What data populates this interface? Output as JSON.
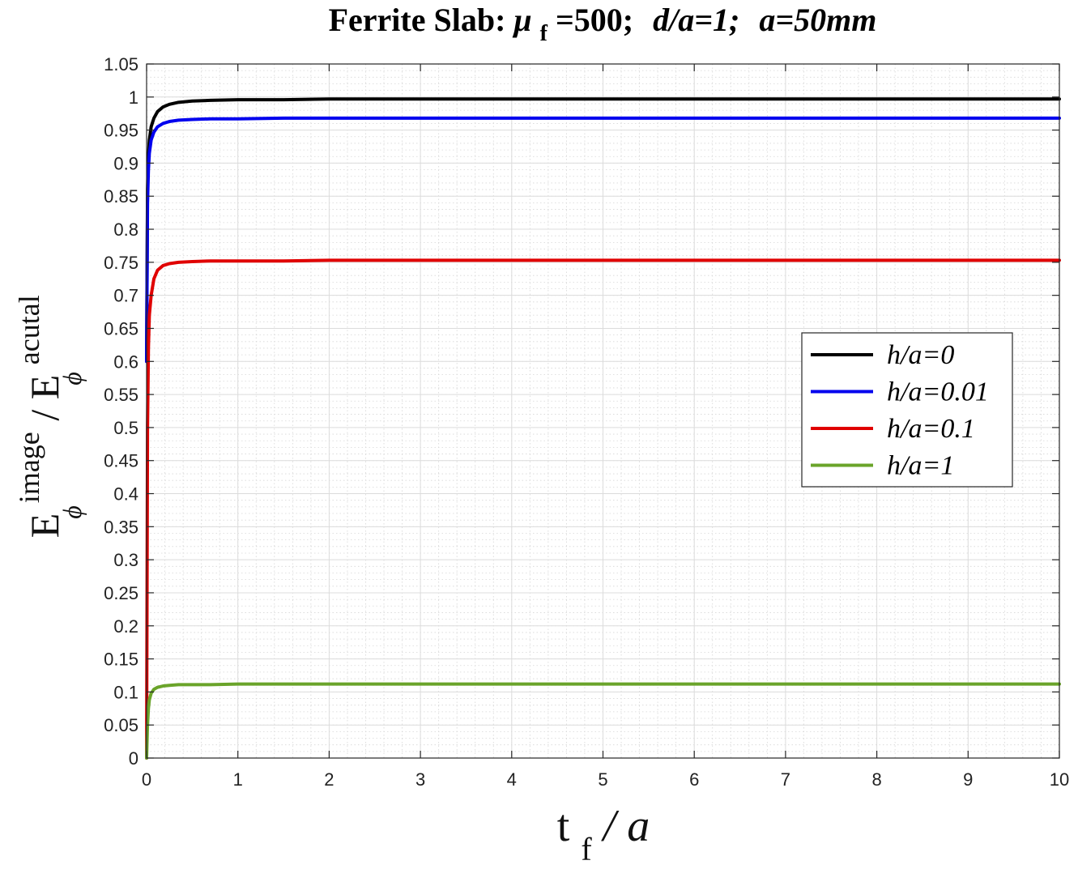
{
  "chart_data": {
    "type": "line",
    "title": {
      "prefix": "Ferrite Slab: ",
      "mu": "μ",
      "mu_sub": "f",
      "mu_value": "=500;",
      "param2": "d/a=1;",
      "param3": "a=50mm"
    },
    "xlabel": {
      "base": "t",
      "sub": "f",
      "rest": "/ a"
    },
    "ylabel": {
      "num_base": "E",
      "num_sup": "image",
      "num_sub": "ϕ",
      "slash": "/",
      "den_base": "E",
      "den_sup": "acutal",
      "den_sub": "ϕ"
    },
    "xlim": [
      0,
      10
    ],
    "ylim": [
      0,
      1.05
    ],
    "x_ticks": [
      0,
      1,
      2,
      3,
      4,
      5,
      6,
      7,
      8,
      9,
      10
    ],
    "x_tick_labels": [
      "0",
      "1",
      "2",
      "3",
      "4",
      "5",
      "6",
      "7",
      "8",
      "9",
      "10"
    ],
    "y_ticks": [
      0,
      0.05,
      0.1,
      0.15,
      0.2,
      0.25,
      0.3,
      0.35,
      0.4,
      0.45,
      0.5,
      0.55,
      0.6,
      0.65,
      0.7,
      0.75,
      0.8,
      0.85,
      0.9,
      0.95,
      1,
      1.05
    ],
    "y_tick_labels": [
      "0",
      "0.05",
      "0.1",
      "0.15",
      "0.2",
      "0.25",
      "0.3",
      "0.35",
      "0.4",
      "0.45",
      "0.5",
      "0.55",
      "0.6",
      "0.65",
      "0.7",
      "0.75",
      "0.8",
      "0.85",
      "0.9",
      "0.95",
      "1",
      "1.05"
    ],
    "grid": true,
    "minor_grid": true,
    "legend_position": "center-right",
    "series": [
      {
        "name": "h/a=0",
        "color": "#000000",
        "x": [
          0,
          0.01,
          0.02,
          0.03,
          0.05,
          0.08,
          0.12,
          0.18,
          0.25,
          0.35,
          0.5,
          0.7,
          1,
          1.5,
          2,
          3,
          5,
          7,
          10
        ],
        "y": [
          0.6,
          0.86,
          0.91,
          0.935,
          0.955,
          0.968,
          0.978,
          0.985,
          0.989,
          0.992,
          0.994,
          0.995,
          0.996,
          0.996,
          0.997,
          0.997,
          0.997,
          0.997,
          0.997
        ]
      },
      {
        "name": "h/a=0.01",
        "color": "#0000ee",
        "x": [
          0,
          0.01,
          0.02,
          0.03,
          0.05,
          0.08,
          0.12,
          0.18,
          0.25,
          0.35,
          0.5,
          0.7,
          1,
          1.5,
          2,
          3,
          5,
          7,
          10
        ],
        "y": [
          0.6,
          0.84,
          0.89,
          0.915,
          0.935,
          0.947,
          0.955,
          0.96,
          0.963,
          0.965,
          0.966,
          0.967,
          0.967,
          0.968,
          0.968,
          0.968,
          0.968,
          0.968,
          0.968
        ]
      },
      {
        "name": "h/a=0.1",
        "color": "#e00000",
        "x": [
          0,
          0.01,
          0.02,
          0.03,
          0.05,
          0.08,
          0.12,
          0.18,
          0.25,
          0.35,
          0.5,
          0.7,
          1,
          1.5,
          2,
          3,
          5,
          7,
          10
        ],
        "y": [
          0.0,
          0.5,
          0.62,
          0.67,
          0.7,
          0.725,
          0.738,
          0.745,
          0.748,
          0.75,
          0.751,
          0.752,
          0.752,
          0.752,
          0.753,
          0.753,
          0.753,
          0.753,
          0.753
        ]
      },
      {
        "name": "h/a=1",
        "color": "#6aa42a",
        "x": [
          0,
          0.01,
          0.02,
          0.03,
          0.05,
          0.08,
          0.12,
          0.18,
          0.25,
          0.35,
          0.5,
          0.7,
          1,
          1.5,
          2,
          3,
          5,
          7,
          10
        ],
        "y": [
          0.0,
          0.05,
          0.075,
          0.088,
          0.098,
          0.104,
          0.107,
          0.109,
          0.11,
          0.111,
          0.111,
          0.111,
          0.112,
          0.112,
          0.112,
          0.112,
          0.112,
          0.112,
          0.112
        ]
      }
    ]
  }
}
